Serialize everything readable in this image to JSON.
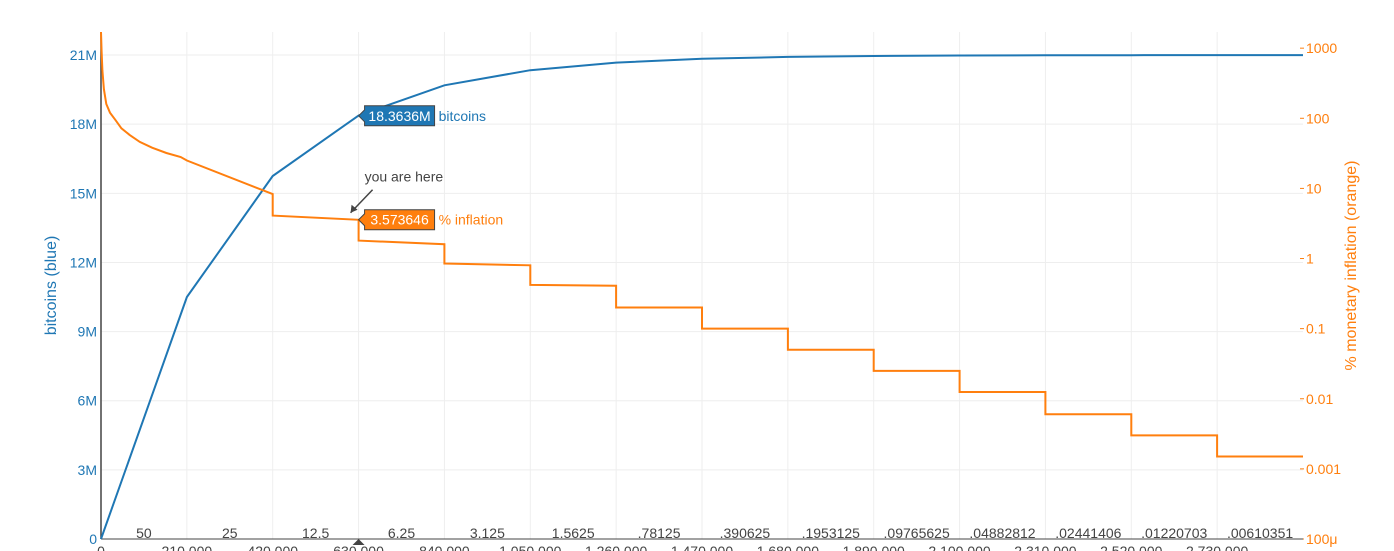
{
  "chart_data": {
    "type": "line",
    "x_ticks_bottom": [
      "0",
      "210,000",
      "420,000",
      "630,000",
      "840,000",
      "1,050,000",
      "1,260,000",
      "1,470,000",
      "1,680,000",
      "1,890,000",
      "2,100,000",
      "2,310,000",
      "2,520,000",
      "2,730,000"
    ],
    "x_ticks_top": [
      "50",
      "25",
      "12.5",
      "6.25",
      "3.125",
      "1.5625",
      ".78125",
      ".390625",
      ".1953125",
      ".09765625",
      ".04882812",
      ".02441406",
      ".01220703",
      ".00610351"
    ],
    "xlim": [
      0,
      2940000
    ],
    "y_left": {
      "label": "bitcoins (blue)",
      "ticks": [
        "0",
        "3M",
        "6M",
        "9M",
        "12M",
        "15M",
        "18M",
        "21M"
      ],
      "tick_values": [
        0,
        3000000,
        6000000,
        9000000,
        12000000,
        15000000,
        18000000,
        21000000
      ],
      "range": [
        0,
        22000000
      ]
    },
    "y_right": {
      "label": "% monetary inflation (orange)",
      "scale": "log",
      "ticks": [
        "1000",
        "100",
        "10",
        "1",
        "0.1",
        "0.01",
        "0.001",
        "100μ"
      ],
      "tick_values": [
        1000,
        100,
        10,
        1,
        0.1,
        0.01,
        0.001,
        0.0001
      ],
      "range": [
        0.0001,
        1700
      ]
    },
    "series": [
      {
        "name": "bitcoins",
        "color": "#1f77b4",
        "axis": "left",
        "x": [
          0,
          210000,
          420000,
          630000,
          840000,
          1050000,
          1260000,
          1470000,
          1680000,
          1890000,
          2100000,
          2310000,
          2520000,
          2730000,
          2940000
        ],
        "y": [
          0,
          10500000,
          15750000,
          18375000,
          19687500,
          20343750,
          20671875,
          20835938,
          20917969,
          20958984,
          20979492,
          20989746,
          20994873,
          20997437,
          20998718
        ]
      },
      {
        "name": "% inflation",
        "color": "#ff7f0e",
        "axis": "right",
        "steps": [
          {
            "x0": 210000,
            "x1": 420000,
            "y0": 25,
            "y1": 8.3
          },
          {
            "x0": 420000,
            "x1": 630000,
            "y0": 4.1,
            "y1": 3.57
          },
          {
            "x0": 630000,
            "x1": 840000,
            "y0": 1.8,
            "y1": 1.6
          },
          {
            "x0": 840000,
            "x1": 1050000,
            "y0": 0.85,
            "y1": 0.8
          },
          {
            "x0": 1050000,
            "x1": 1260000,
            "y0": 0.42,
            "y1": 0.41
          },
          {
            "x0": 1260000,
            "x1": 1470000,
            "y0": 0.2,
            "y1": 0.2
          },
          {
            "x0": 1470000,
            "x1": 1680000,
            "y0": 0.1,
            "y1": 0.1
          },
          {
            "x0": 1680000,
            "x1": 1890000,
            "y0": 0.05,
            "y1": 0.05
          },
          {
            "x0": 1890000,
            "x1": 2100000,
            "y0": 0.025,
            "y1": 0.025
          },
          {
            "x0": 2100000,
            "x1": 2310000,
            "y0": 0.0125,
            "y1": 0.0125
          },
          {
            "x0": 2310000,
            "x1": 2520000,
            "y0": 0.006,
            "y1": 0.006
          },
          {
            "x0": 2520000,
            "x1": 2730000,
            "y0": 0.003,
            "y1": 0.003
          },
          {
            "x0": 2730000,
            "x1": 2940000,
            "y0": 0.0015,
            "y1": 0.0015
          }
        ],
        "initial_curve": {
          "x": [
            0,
            1500,
            3500,
            7000,
            13000,
            22000,
            35000,
            50000,
            70000,
            95000,
            125000,
            160000,
            195000,
            210000
          ],
          "y": [
            1700,
            900,
            480,
            260,
            160,
            120,
            95,
            72,
            58,
            46,
            38,
            32,
            28,
            25
          ]
        }
      }
    ],
    "annotations": {
      "bitcoins_value": "18.3636M",
      "bitcoins_label": "bitcoins",
      "inflation_value": "3.573646",
      "inflation_label": "% inflation",
      "current_x": 630000,
      "bitcoins_y": 18363600,
      "inflation_y": 3.573646,
      "note": "you are here"
    },
    "grid": true
  }
}
